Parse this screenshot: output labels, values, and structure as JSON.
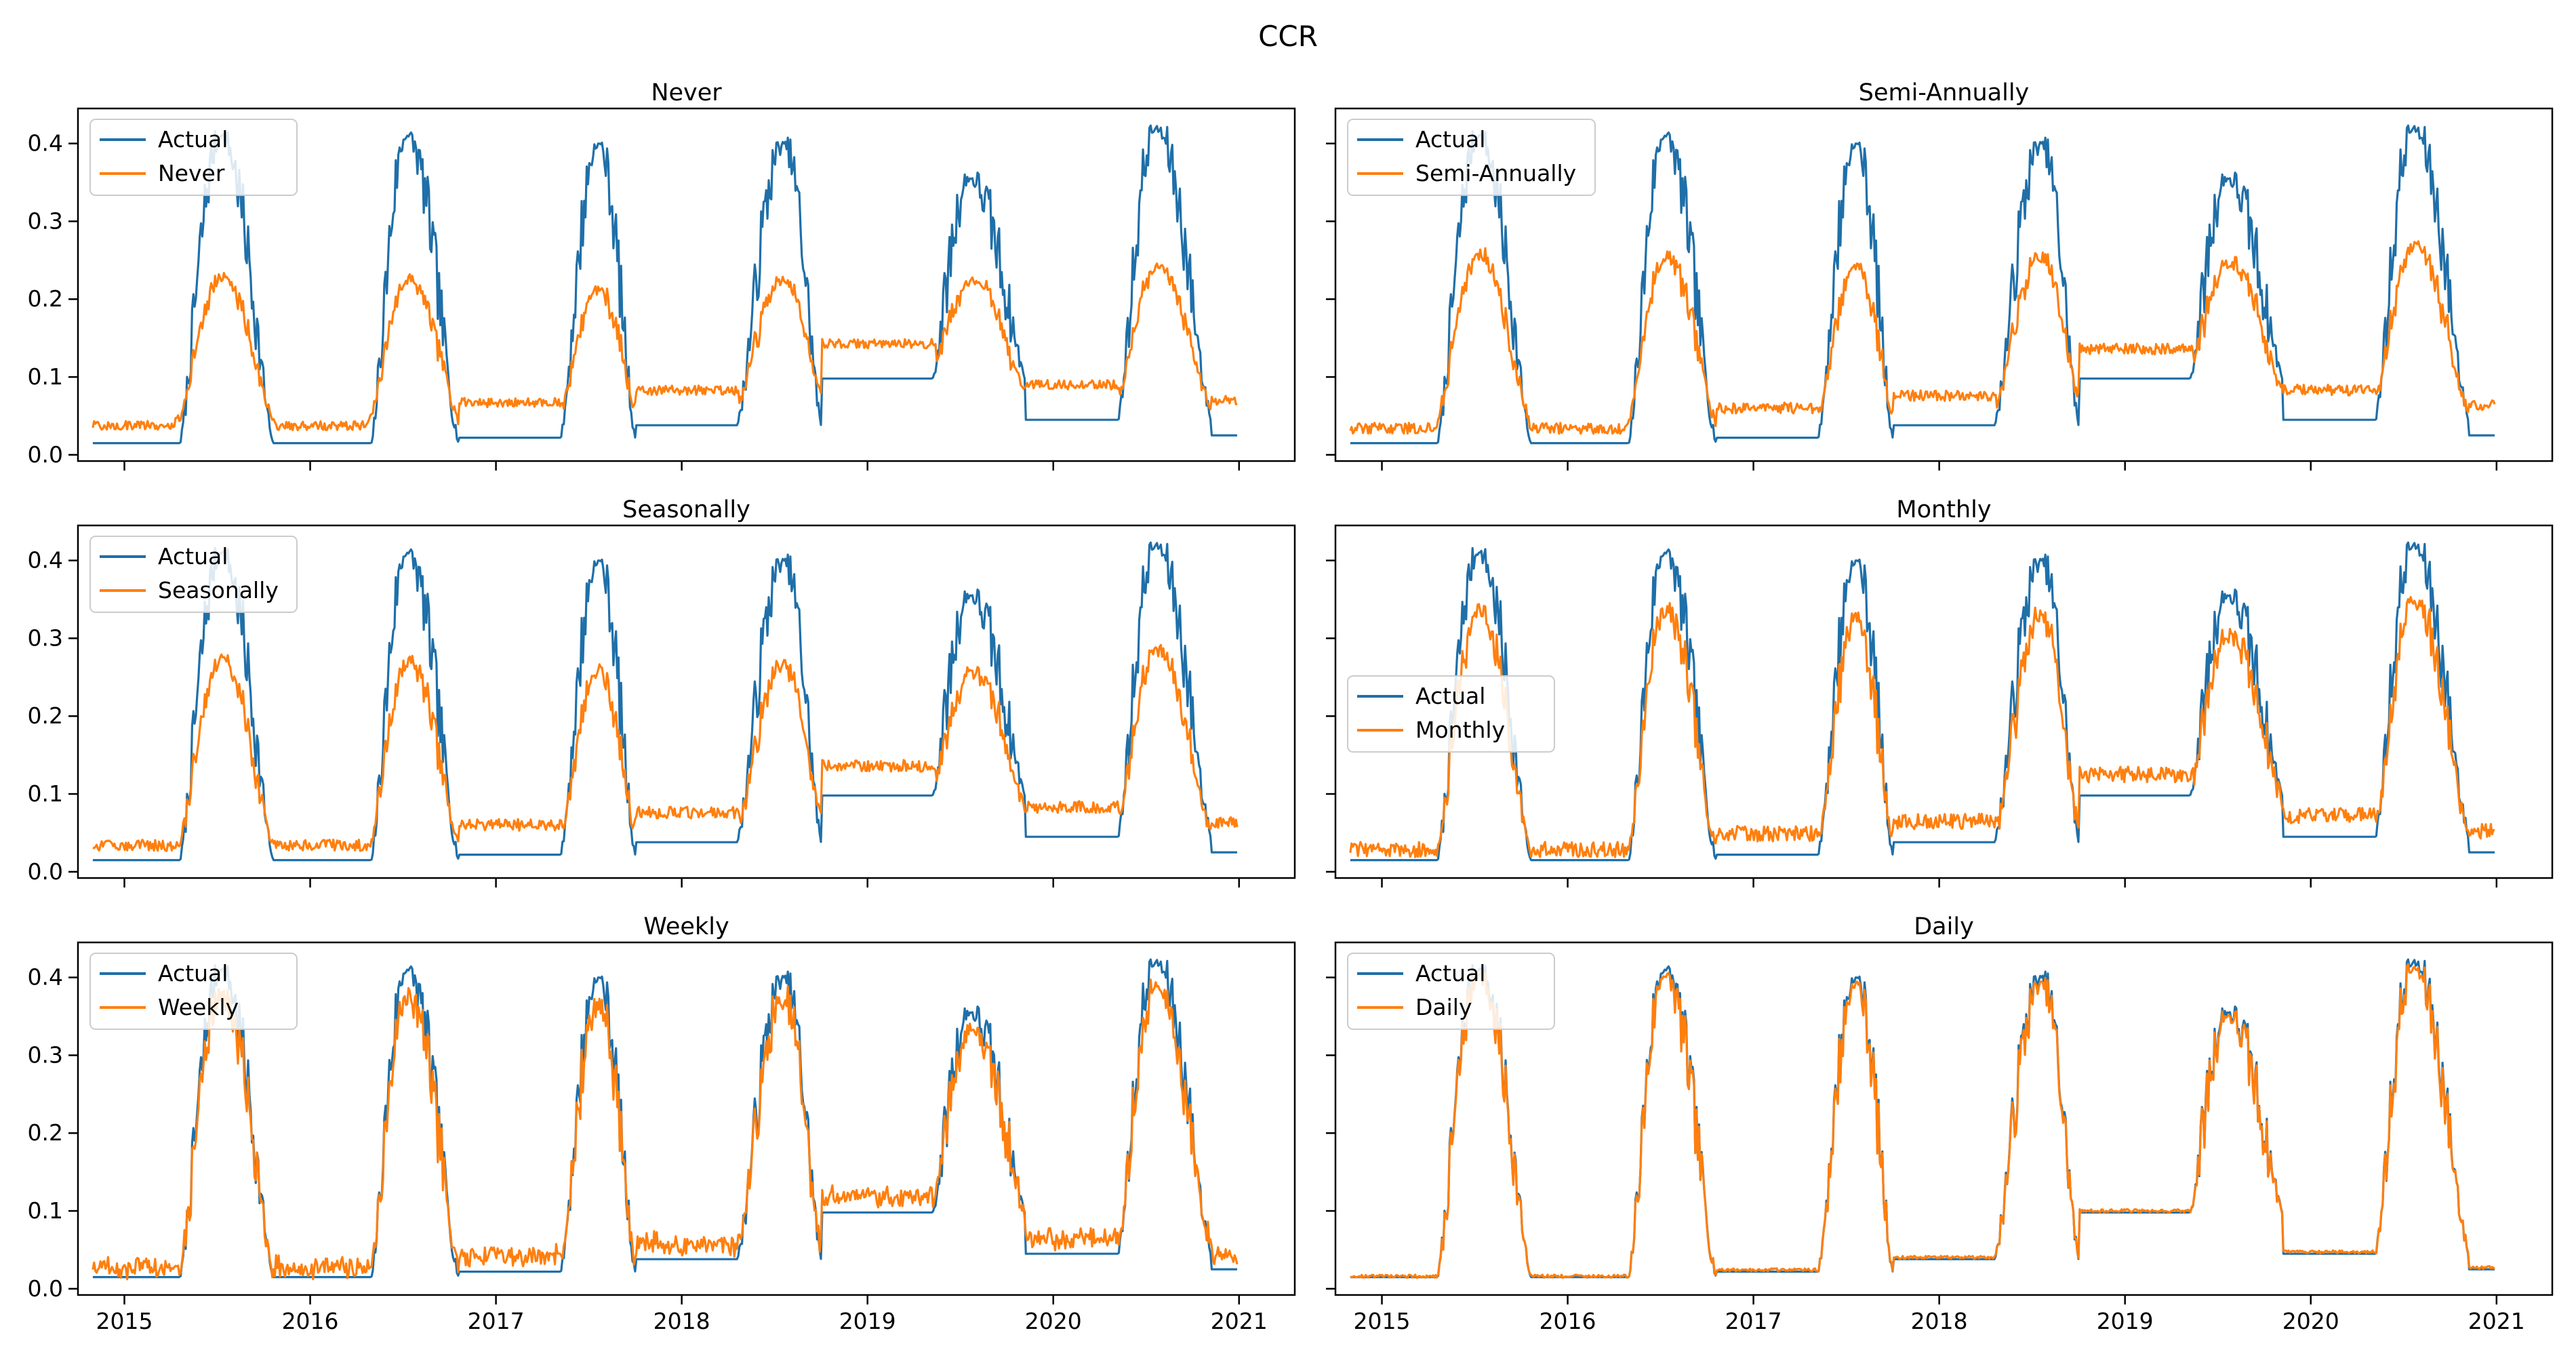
{
  "figure": {
    "suptitle": "CCR",
    "colors": {
      "actual": "#1f6fa8",
      "model": "#ff7f0e"
    }
  },
  "chart_data": {
    "type": "line",
    "x_ticks": [
      "2015",
      "2016",
      "2017",
      "2018",
      "2019",
      "2020",
      "2021"
    ],
    "y_ticks": [
      "0.0",
      "0.1",
      "0.2",
      "0.3",
      "0.4"
    ],
    "xlim": [
      2014.75,
      2021.3
    ],
    "ylim": [
      -0.008,
      0.445
    ],
    "subplots": [
      {
        "title": "Never",
        "series": [
          "Actual",
          "Never"
        ],
        "legend": "upper-left",
        "smooth": 0.9,
        "season": 0.6,
        "plateau": 1.0,
        "noise": 0.012,
        "floor": 0.0
      },
      {
        "title": "Semi-Annually",
        "series": [
          "Actual",
          "Semi-Annually"
        ],
        "legend": "upper-left",
        "smooth": 0.75,
        "season": 0.65,
        "plateau": 0.85,
        "noise": 0.014,
        "floor": 0.0
      },
      {
        "title": "Seasonally",
        "series": [
          "Actual",
          "Seasonally"
        ],
        "legend": "upper-left",
        "smooth": 0.7,
        "season": 0.68,
        "plateau": 0.85,
        "noise": 0.015,
        "floor": 0.0
      },
      {
        "title": "Monthly",
        "series": [
          "Actual",
          "Monthly"
        ],
        "legend": "center-left",
        "smooth": 0.45,
        "season": 0.82,
        "plateau": 0.6,
        "noise": 0.02,
        "floor": 0.0
      },
      {
        "title": "Weekly",
        "series": [
          "Actual",
          "Weekly"
        ],
        "legend": "upper-left",
        "smooth": 0.25,
        "season": 0.9,
        "plateau": 0.3,
        "noise": 0.022,
        "floor": 0.012
      },
      {
        "title": "Daily",
        "series": [
          "Actual",
          "Daily"
        ],
        "legend": "upper-left",
        "smooth": 0.05,
        "season": 0.98,
        "plateau": 0.05,
        "noise": 0.004,
        "floor": 0.0
      }
    ],
    "actual_profile": {
      "base_levels": [
        [
          2014.83,
          0.015
        ],
        [
          2015.75,
          0.015
        ],
        [
          2016.8,
          0.022
        ],
        [
          2017.75,
          0.038
        ],
        [
          2018.75,
          0.098
        ],
        [
          2019.75,
          0.045
        ],
        [
          2020.75,
          0.025
        ]
      ],
      "seasons": [
        {
          "start": 2015.3,
          "peak": 2015.52,
          "end": 2015.8,
          "peak_value": 0.41
        },
        {
          "start": 2016.33,
          "peak": 2016.52,
          "end": 2016.8,
          "peak_value": 0.41
        },
        {
          "start": 2017.35,
          "peak": 2017.55,
          "end": 2017.75,
          "peak_value": 0.4
        },
        {
          "start": 2018.3,
          "peak": 2018.55,
          "end": 2018.75,
          "peak_value": 0.4
        },
        {
          "start": 2019.35,
          "peak": 2019.55,
          "end": 2019.85,
          "peak_value": 0.355
        },
        {
          "start": 2020.35,
          "peak": 2020.55,
          "end": 2020.85,
          "peak_value": 0.42
        }
      ]
    }
  }
}
